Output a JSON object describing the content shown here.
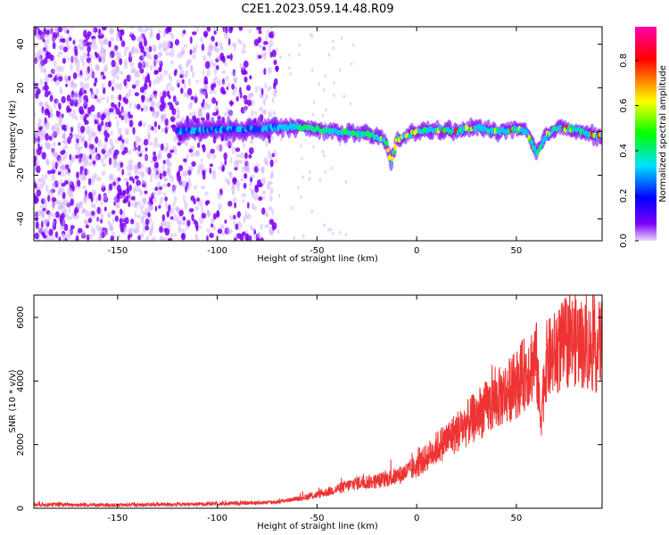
{
  "page_title": "C2E1.2023.059.14.48.R09",
  "colors": {
    "snr_line": "#ee3333",
    "spectrogram_low": "#7b00f5",
    "axis": "#000000",
    "background": "#ffffff"
  },
  "chart_data": [
    {
      "type": "heatmap",
      "title": "C2E1.2023.059.14.48.R09",
      "xlabel": "Height of straight line (km)",
      "ylabel": "Frequency (Hz)",
      "xlim": [
        -192,
        93
      ],
      "ylim": [
        -50,
        48
      ],
      "x_ticks": [
        -150,
        -100,
        -50,
        0,
        50
      ],
      "y_ticks": [
        -40,
        -20,
        0,
        20,
        40
      ],
      "colorbar": {
        "label": "Normalized spectral amplitude",
        "range": [
          0.0,
          0.95
        ],
        "ticks": [
          0.0,
          0.2,
          0.4,
          0.6,
          0.8
        ],
        "colormap": [
          "#e8d8ff",
          "#7b00f5",
          "#0000ff",
          "#00e0ff",
          "#00ff00",
          "#ffff00",
          "#ff0000",
          "#ff00aa"
        ]
      },
      "ridge_line": {
        "description_values_x": [
          -120,
          -100,
          -80,
          -70,
          -60,
          -50,
          -40,
          -30,
          -20,
          -15,
          -13,
          -10,
          0,
          10,
          20,
          30,
          40,
          50,
          55,
          60,
          65,
          70,
          80,
          90
        ],
        "frequency_hz": [
          0,
          1,
          1,
          2,
          2,
          1,
          0,
          -1,
          -2,
          -5,
          -15,
          -4,
          0,
          1,
          0,
          2,
          0,
          1,
          0,
          -10,
          -2,
          2,
          1,
          -2
        ]
      },
      "noise_region_x": [
        -192,
        -70
      ],
      "legend": "none",
      "grid": false
    },
    {
      "type": "line",
      "xlabel": "Height of straight line (km)",
      "ylabel": "SNR (10 * v/v)",
      "xlim": [
        -192,
        93
      ],
      "ylim": [
        0,
        6700
      ],
      "x_ticks": [
        -150,
        -100,
        -50,
        0,
        50
      ],
      "y_ticks": [
        0,
        2000,
        4000,
        6000
      ],
      "series": [
        {
          "x": [
            -192,
            -170,
            -150,
            -120,
            -100,
            -80,
            -70,
            -60,
            -50,
            -40,
            -35,
            -30,
            -20,
            -10,
            0,
            10,
            20,
            30,
            40,
            50,
            55,
            60,
            62,
            65,
            70,
            75,
            80,
            85,
            90,
            93
          ],
          "y": [
            120,
            110,
            100,
            120,
            140,
            170,
            200,
            300,
            420,
            600,
            700,
            800,
            850,
            1000,
            1300,
            1900,
            2400,
            2900,
            3400,
            3900,
            4300,
            4700,
            2800,
            4600,
            4900,
            5200,
            5300,
            5100,
            5000,
            5200
          ]
        }
      ],
      "legend": "none",
      "grid": false
    }
  ]
}
